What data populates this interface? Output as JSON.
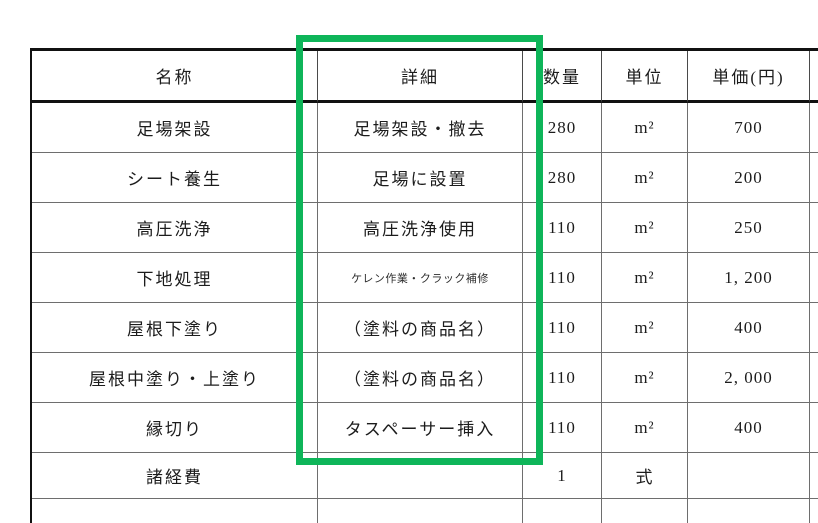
{
  "highlight": {
    "color": "#0eb559",
    "purpose": "emphasizes the detail (詳細) column"
  },
  "table": {
    "columns": {
      "name": "名称",
      "detail": "詳細",
      "qty": "数量",
      "unit": "単位",
      "price": "単価(円)"
    },
    "rows": [
      {
        "name": "足場架設",
        "detail": "足場架設・撤去",
        "qty": "280",
        "unit": "m²",
        "price": "700"
      },
      {
        "name": "シート養生",
        "detail": "足場に設置",
        "qty": "280",
        "unit": "m²",
        "price": "200"
      },
      {
        "name": "高圧洗浄",
        "detail": "高圧洗浄使用",
        "qty": "110",
        "unit": "m²",
        "price": "250"
      },
      {
        "name": "下地処理",
        "detail": "ケレン作業・クラック補修",
        "qty": "110",
        "unit": "m²",
        "price": "1, 200"
      },
      {
        "name": "屋根下塗り",
        "detail": "（塗料の商品名）",
        "qty": "110",
        "unit": "m²",
        "price": "400"
      },
      {
        "name": "屋根中塗り・上塗り",
        "detail": "（塗料の商品名）",
        "qty": "110",
        "unit": "m²",
        "price": "2, 000"
      },
      {
        "name": "縁切り",
        "detail": "タスペーサー挿入",
        "qty": "110",
        "unit": "m²",
        "price": "400"
      },
      {
        "name": "諸経費",
        "detail": "",
        "qty": "1",
        "unit": "式",
        "price": ""
      },
      {
        "name": "",
        "detail": "",
        "qty": "",
        "unit": "",
        "price": ""
      }
    ]
  }
}
